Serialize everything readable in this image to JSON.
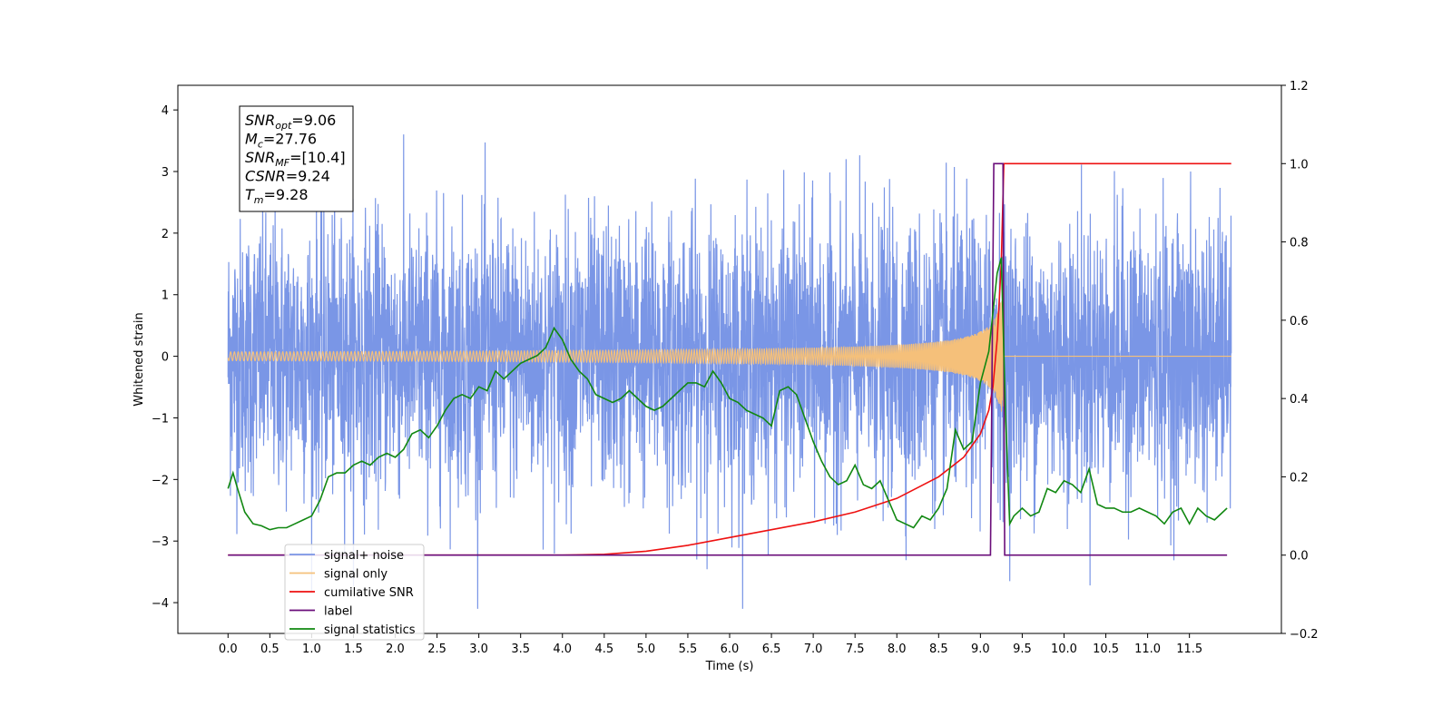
{
  "chart_data": {
    "type": "line",
    "title": "",
    "xlabel": "Time (s)",
    "ylabel": "Whitened strain",
    "y2label": "",
    "xlim": [
      -0.6,
      12.6
    ],
    "ylim": [
      -4.5,
      4.4
    ],
    "y2lim": [
      -0.2,
      1.2
    ],
    "xticks": [
      0.0,
      0.5,
      1.0,
      1.5,
      2.0,
      2.5,
      3.0,
      3.5,
      4.0,
      4.5,
      5.0,
      5.5,
      6.0,
      6.5,
      7.0,
      7.5,
      8.0,
      8.5,
      9.0,
      9.5,
      10.0,
      10.5,
      11.0,
      11.5
    ],
    "xtick_labels": [
      "0.0",
      "0.5",
      "1.0",
      "1.5",
      "2.0",
      "2.5",
      "3.0",
      "3.5",
      "4.0",
      "4.5",
      "5.0",
      "5.5",
      "6.0",
      "6.5",
      "7.0",
      "7.5",
      "8.0",
      "8.5",
      "9.0",
      "9.5",
      "10.0",
      "10.5",
      "11.0",
      "11.5"
    ],
    "yticks": [
      -4,
      -3,
      -2,
      -1,
      0,
      1,
      2,
      3,
      4
    ],
    "ytick_labels": [
      "−4",
      "−3",
      "−2",
      "−1",
      "0",
      "1",
      "2",
      "3",
      "4"
    ],
    "y2ticks": [
      -0.2,
      0.0,
      0.2,
      0.4,
      0.6,
      0.8,
      1.0,
      1.2
    ],
    "y2tick_labels": [
      "−0.2",
      "0.0",
      "0.2",
      "0.4",
      "0.6",
      "0.8",
      "1.0",
      "1.2"
    ],
    "grid": false,
    "legend_position": "lower-left",
    "info_box": {
      "lines": [
        {
          "main": "SNR",
          "sub": "opt",
          "value": "=9.06"
        },
        {
          "main": "M",
          "sub": "c",
          "value": "=27.76"
        },
        {
          "main": "SNR",
          "sub": "MF",
          "value": "=[10.4]"
        },
        {
          "main": "CSNR",
          "sub": "",
          "value": "=9.24"
        },
        {
          "main": "T",
          "sub": "m",
          "value": "=9.28"
        }
      ]
    },
    "series": [
      {
        "name": "signal+ noise",
        "axis": "left",
        "color": "#7a96e6",
        "noise_amplitude": 1.1,
        "x_range": [
          0.0,
          12.0
        ]
      },
      {
        "name": "signal only",
        "axis": "left",
        "color": "#f5c07a",
        "chirp_peak_time": 9.28,
        "x_range": [
          0.0,
          12.0
        ]
      },
      {
        "name": "cumilative SNR",
        "axis": "right",
        "color": "#ee1111",
        "x": [
          0.0,
          4.0,
          4.5,
          5.0,
          5.5,
          6.0,
          6.5,
          7.0,
          7.5,
          8.0,
          8.5,
          8.8,
          9.0,
          9.1,
          9.15,
          9.2,
          9.25,
          9.28,
          9.3,
          12.0
        ],
        "values": [
          0.0,
          0.0,
          0.002,
          0.01,
          0.025,
          0.045,
          0.065,
          0.085,
          0.11,
          0.145,
          0.2,
          0.25,
          0.31,
          0.37,
          0.43,
          0.55,
          0.75,
          1.0,
          1.0,
          1.0
        ]
      },
      {
        "name": "label",
        "axis": "right",
        "color": "#6a0d7a",
        "x": [
          0.0,
          9.12,
          9.16,
          9.27,
          9.29,
          11.95
        ],
        "values": [
          0.0,
          0.0,
          1.0,
          1.0,
          0.0,
          0.0
        ]
      },
      {
        "name": "signal statistics",
        "axis": "right",
        "color": "#118811",
        "x": [
          0.0,
          0.06,
          0.1,
          0.2,
          0.3,
          0.4,
          0.5,
          0.6,
          0.7,
          0.8,
          0.9,
          1.0,
          1.1,
          1.2,
          1.3,
          1.4,
          1.5,
          1.6,
          1.7,
          1.8,
          1.9,
          2.0,
          2.1,
          2.2,
          2.3,
          2.4,
          2.5,
          2.6,
          2.7,
          2.8,
          2.9,
          3.0,
          3.1,
          3.2,
          3.3,
          3.4,
          3.5,
          3.6,
          3.7,
          3.8,
          3.9,
          4.0,
          4.1,
          4.2,
          4.3,
          4.4,
          4.5,
          4.6,
          4.7,
          4.8,
          4.9,
          5.0,
          5.1,
          5.2,
          5.3,
          5.4,
          5.5,
          5.6,
          5.7,
          5.8,
          5.9,
          6.0,
          6.1,
          6.2,
          6.3,
          6.4,
          6.5,
          6.6,
          6.7,
          6.8,
          6.9,
          7.0,
          7.1,
          7.2,
          7.3,
          7.4,
          7.5,
          7.6,
          7.7,
          7.8,
          7.9,
          8.0,
          8.1,
          8.2,
          8.3,
          8.4,
          8.5,
          8.6,
          8.7,
          8.8,
          8.9,
          9.0,
          9.1,
          9.15,
          9.2,
          9.25,
          9.3,
          9.35,
          9.4,
          9.5,
          9.6,
          9.7,
          9.8,
          9.9,
          10.0,
          10.1,
          10.2,
          10.3,
          10.4,
          10.5,
          10.6,
          10.7,
          10.8,
          10.9,
          11.0,
          11.1,
          11.2,
          11.3,
          11.4,
          11.5,
          11.6,
          11.7,
          11.8,
          11.9,
          11.95
        ],
        "values": [
          0.17,
          0.21,
          0.18,
          0.11,
          0.08,
          0.075,
          0.065,
          0.07,
          0.07,
          0.08,
          0.09,
          0.1,
          0.14,
          0.2,
          0.21,
          0.21,
          0.23,
          0.24,
          0.23,
          0.25,
          0.26,
          0.25,
          0.27,
          0.31,
          0.32,
          0.3,
          0.33,
          0.37,
          0.4,
          0.41,
          0.4,
          0.43,
          0.42,
          0.47,
          0.45,
          0.47,
          0.49,
          0.5,
          0.51,
          0.53,
          0.58,
          0.55,
          0.5,
          0.47,
          0.45,
          0.41,
          0.4,
          0.39,
          0.4,
          0.42,
          0.4,
          0.38,
          0.37,
          0.38,
          0.4,
          0.42,
          0.44,
          0.44,
          0.43,
          0.47,
          0.44,
          0.4,
          0.39,
          0.37,
          0.36,
          0.35,
          0.33,
          0.42,
          0.43,
          0.41,
          0.35,
          0.29,
          0.24,
          0.2,
          0.18,
          0.19,
          0.23,
          0.18,
          0.17,
          0.19,
          0.14,
          0.09,
          0.08,
          0.07,
          0.1,
          0.09,
          0.12,
          0.17,
          0.32,
          0.27,
          0.29,
          0.44,
          0.52,
          0.62,
          0.72,
          0.76,
          0.36,
          0.08,
          0.1,
          0.12,
          0.1,
          0.11,
          0.17,
          0.16,
          0.19,
          0.18,
          0.16,
          0.22,
          0.13,
          0.12,
          0.12,
          0.11,
          0.11,
          0.12,
          0.11,
          0.1,
          0.08,
          0.11,
          0.12,
          0.08,
          0.12,
          0.1,
          0.09,
          0.11,
          0.12
        ]
      }
    ]
  }
}
